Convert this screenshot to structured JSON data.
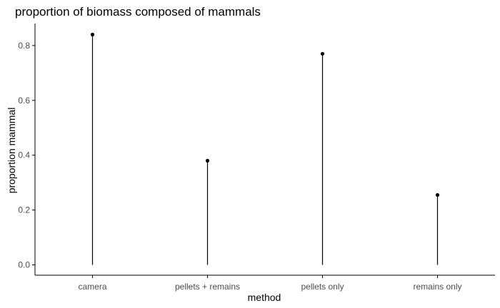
{
  "chart_data": {
    "type": "lollipop",
    "title": "proportion of biomass composed of mammals",
    "xlabel": "method",
    "ylabel": "proportion mammal",
    "categories": [
      "camera",
      "pellets + remains",
      "pellets only",
      "remains only"
    ],
    "values": [
      0.84,
      0.38,
      0.77,
      0.255
    ],
    "ylim": [
      0,
      0.84
    ],
    "yticks": [
      0.0,
      0.2,
      0.4,
      0.6,
      0.8
    ],
    "ytick_labels": [
      "0.0",
      "0.2",
      "0.4",
      "0.6",
      "0.8"
    ],
    "grid": false,
    "legend": "none",
    "colors": {
      "mark": "#000000",
      "axis": "#000000",
      "tick_text": "#4d4d4d",
      "background": "#ffffff"
    }
  }
}
